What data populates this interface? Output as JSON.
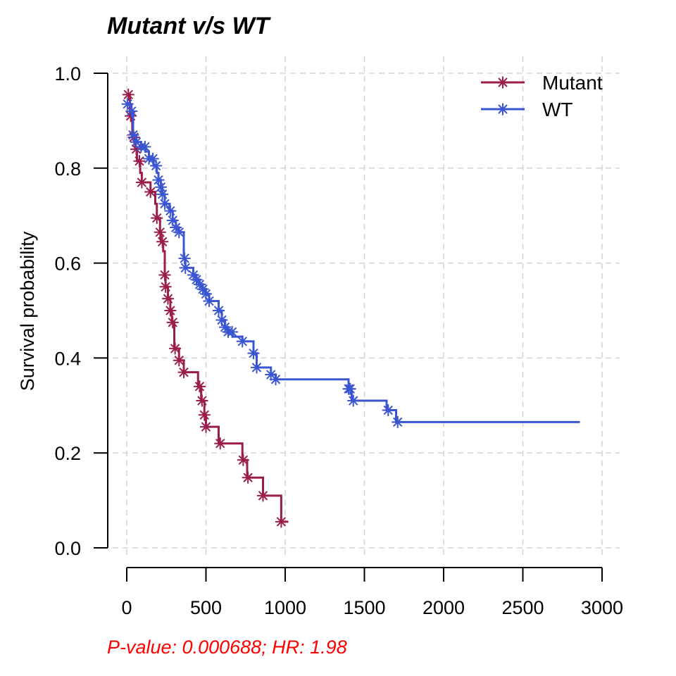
{
  "chart_data": {
    "type": "line",
    "title": "Mutant v/s WT",
    "xlabel": "",
    "ylabel": "Survival probability",
    "xlim": [
      0,
      3000
    ],
    "ylim": [
      0,
      1
    ],
    "x_ticks": [
      "0",
      "500",
      "1000",
      "1500",
      "2000",
      "2500",
      "3000"
    ],
    "y_ticks": [
      "0.0",
      "0.2",
      "0.4",
      "0.6",
      "0.8",
      "1.0"
    ],
    "grid": true,
    "legend_position": "top-right",
    "annotation": "P-value: 0.000688; HR: 1.98",
    "series": [
      {
        "name": "Mutant",
        "color": "#9b1d4b",
        "steps": [
          [
            0,
            0.955
          ],
          [
            20,
            0.91
          ],
          [
            35,
            0.865
          ],
          [
            55,
            0.84
          ],
          [
            65,
            0.815
          ],
          [
            85,
            0.79
          ],
          [
            95,
            0.77
          ],
          [
            150,
            0.75
          ],
          [
            180,
            0.725
          ],
          [
            190,
            0.695
          ],
          [
            210,
            0.665
          ],
          [
            215,
            0.645
          ],
          [
            230,
            0.625
          ],
          [
            240,
            0.575
          ],
          [
            245,
            0.55
          ],
          [
            260,
            0.525
          ],
          [
            275,
            0.5
          ],
          [
            285,
            0.475
          ],
          [
            300,
            0.42
          ],
          [
            330,
            0.395
          ],
          [
            360,
            0.37
          ],
          [
            450,
            0.34
          ],
          [
            470,
            0.31
          ],
          [
            490,
            0.28
          ],
          [
            500,
            0.255
          ],
          [
            580,
            0.22
          ],
          [
            730,
            0.185
          ],
          [
            760,
            0.148
          ],
          [
            860,
            0.11
          ],
          [
            975,
            0.055
          ],
          [
            1020,
            0.055
          ]
        ],
        "censor_x": [
          10,
          25,
          45,
          60,
          80,
          95,
          150,
          190,
          210,
          225,
          240,
          245,
          260,
          275,
          290,
          305,
          330,
          360,
          460,
          475,
          490,
          500,
          590,
          735,
          765,
          860,
          975
        ]
      },
      {
        "name": "WT",
        "color": "#3a55d1",
        "steps": [
          [
            0,
            0.935
          ],
          [
            30,
            0.92
          ],
          [
            40,
            0.87
          ],
          [
            60,
            0.855
          ],
          [
            90,
            0.845
          ],
          [
            120,
            0.835
          ],
          [
            140,
            0.82
          ],
          [
            170,
            0.805
          ],
          [
            190,
            0.79
          ],
          [
            200,
            0.775
          ],
          [
            215,
            0.76
          ],
          [
            225,
            0.745
          ],
          [
            240,
            0.725
          ],
          [
            270,
            0.71
          ],
          [
            290,
            0.69
          ],
          [
            310,
            0.675
          ],
          [
            330,
            0.665
          ],
          [
            360,
            0.61
          ],
          [
            370,
            0.59
          ],
          [
            420,
            0.575
          ],
          [
            440,
            0.565
          ],
          [
            460,
            0.555
          ],
          [
            480,
            0.545
          ],
          [
            500,
            0.535
          ],
          [
            520,
            0.52
          ],
          [
            580,
            0.5
          ],
          [
            600,
            0.48
          ],
          [
            620,
            0.465
          ],
          [
            640,
            0.455
          ],
          [
            670,
            0.445
          ],
          [
            730,
            0.435
          ],
          [
            800,
            0.41
          ],
          [
            820,
            0.38
          ],
          [
            910,
            0.365
          ],
          [
            940,
            0.355
          ],
          [
            1400,
            0.335
          ],
          [
            1420,
            0.31
          ],
          [
            1640,
            0.29
          ],
          [
            1700,
            0.265
          ],
          [
            2860,
            0.265
          ]
        ],
        "censor_x": [
          5,
          30,
          40,
          60,
          90,
          115,
          140,
          165,
          185,
          200,
          215,
          225,
          240,
          275,
          290,
          310,
          330,
          365,
          370,
          420,
          440,
          460,
          480,
          500,
          520,
          580,
          600,
          620,
          640,
          665,
          730,
          800,
          820,
          910,
          940,
          1400,
          1410,
          1430,
          1650,
          1710
        ]
      }
    ]
  }
}
